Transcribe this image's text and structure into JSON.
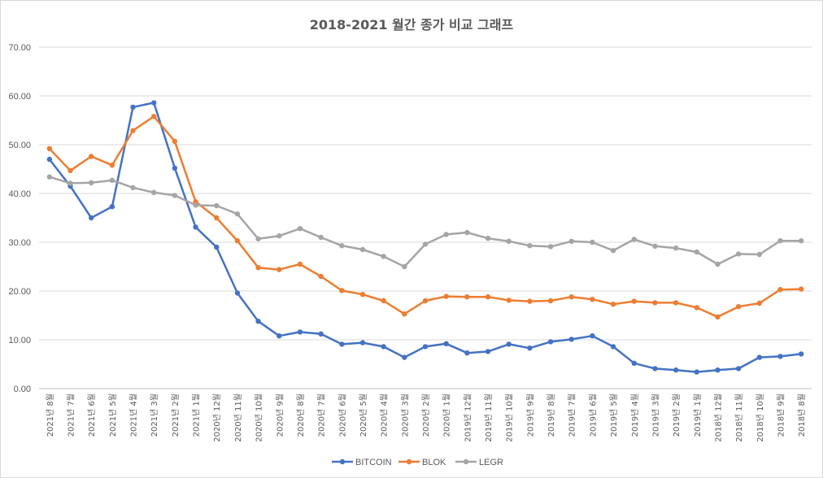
{
  "chart_data": {
    "type": "line",
    "title": "2018-2021 월간 종가 비교 그래프",
    "xlabel": "",
    "ylabel": "",
    "ylim": [
      0,
      70
    ],
    "yticks": [
      "0.00",
      "10.00",
      "20.00",
      "30.00",
      "40.00",
      "50.00",
      "60.00",
      "70.00"
    ],
    "grid": true,
    "legend": "bottom",
    "categories": [
      "2021년 8월",
      "2021년 7월",
      "2021년 6월",
      "2021년 5월",
      "2021년 4월",
      "2021년 3월",
      "2021년 2월",
      "2021년 1월",
      "2020년 12월",
      "2020년 11월",
      "2020년 10월",
      "2020년 9월",
      "2020년 8월",
      "2020년 7월",
      "2020년 6월",
      "2020년 5월",
      "2020년 4월",
      "2020년 3월",
      "2020년 2월",
      "2020년 1월",
      "2019년 12월",
      "2019년 11월",
      "2019년 10월",
      "2019년 9월",
      "2019년 8월",
      "2019년 7월",
      "2019년 6월",
      "2019년 5월",
      "2019년 4월",
      "2019년 3월",
      "2019년 2월",
      "2019년 1월",
      "2018년 12월",
      "2018년 11월",
      "2018년 10월",
      "2018년 9월",
      "2018년 8월"
    ],
    "series": [
      {
        "name": "BITCOIN",
        "color": "#4472c4",
        "values": [
          47.0,
          41.5,
          35.0,
          37.3,
          57.7,
          58.6,
          45.2,
          33.1,
          29.0,
          19.6,
          13.8,
          10.8,
          11.6,
          11.2,
          9.1,
          9.4,
          8.6,
          6.4,
          8.6,
          9.2,
          7.3,
          7.6,
          9.1,
          8.3,
          9.6,
          10.1,
          10.8,
          8.6,
          5.2,
          4.1,
          3.8,
          3.4,
          3.8,
          4.1,
          6.4,
          6.6,
          7.1
        ]
      },
      {
        "name": "BLOK",
        "color": "#ed7d31",
        "values": [
          49.2,
          44.7,
          47.6,
          45.8,
          52.9,
          55.8,
          50.7,
          38.3,
          35.0,
          30.3,
          24.8,
          24.4,
          25.5,
          23.0,
          20.1,
          19.3,
          18.0,
          15.3,
          18.0,
          18.9,
          18.8,
          18.8,
          18.1,
          17.9,
          18.0,
          18.8,
          18.3,
          17.3,
          17.9,
          17.6,
          17.6,
          16.6,
          14.7,
          16.8,
          17.5,
          20.3,
          20.4
        ]
      },
      {
        "name": "LEGR",
        "color": "#a5a5a5",
        "values": [
          43.4,
          42.1,
          42.2,
          42.7,
          41.2,
          40.2,
          39.6,
          37.6,
          37.5,
          35.8,
          30.7,
          31.3,
          32.8,
          31.0,
          29.3,
          28.5,
          27.1,
          25.0,
          29.6,
          31.6,
          32.0,
          30.8,
          30.2,
          29.3,
          29.1,
          30.2,
          30.0,
          28.3,
          30.6,
          29.2,
          28.8,
          28.0,
          25.5,
          27.6,
          27.5,
          30.3,
          30.3
        ]
      }
    ]
  }
}
